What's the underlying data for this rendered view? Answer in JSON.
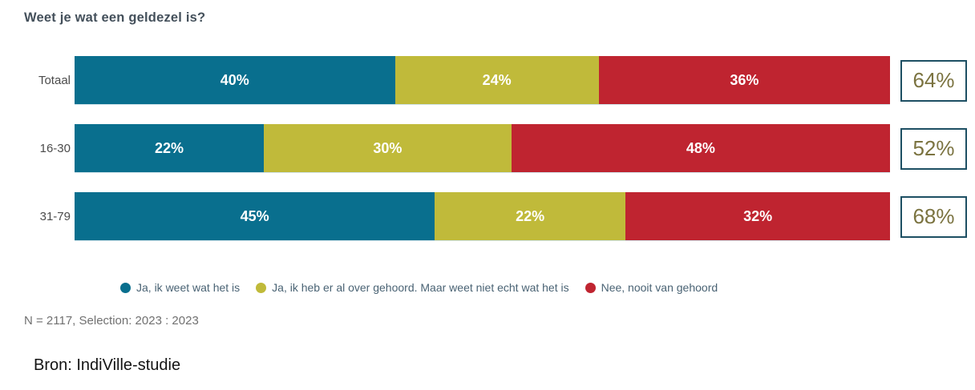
{
  "title": "Weet je wat een geldezel is?",
  "chart_data": {
    "type": "bar",
    "orientation": "horizontal",
    "stacked": true,
    "title": "Weet je wat een geldezel is?",
    "categories": [
      "Totaal",
      "16-30",
      "31-79"
    ],
    "series": [
      {
        "name": "Ja, ik weet wat het is",
        "color": "#096f8e",
        "values": [
          40,
          22,
          45
        ]
      },
      {
        "name": "Ja, ik heb er al over gehoord. Maar weet niet echt wat het is",
        "color": "#c0ba3a",
        "values": [
          24,
          30,
          22
        ]
      },
      {
        "name": "Nee, nooit van gehoord",
        "color": "#bf2430",
        "values": [
          36,
          48,
          32
        ]
      }
    ],
    "labels": [
      [
        "40%",
        "24%",
        "36%"
      ],
      [
        "22%",
        "30%",
        "48%"
      ],
      [
        "45%",
        "22%",
        "32%"
      ]
    ],
    "totals": [
      64,
      52,
      68
    ],
    "totals_labels": [
      "64%",
      "52%",
      "68%"
    ],
    "value_unit": "%",
    "xlim": [
      0,
      100
    ],
    "grid": false,
    "legend_position": "bottom"
  },
  "colors": {
    "total_box_border": "#1d4f63",
    "total_box_text": "#7b7340",
    "title_text": "#44505b",
    "legend_text": "#4a6374"
  },
  "footnote": "N = 2117, Selection: 2023 : 2023",
  "source": "Bron: IndiVille-studie"
}
